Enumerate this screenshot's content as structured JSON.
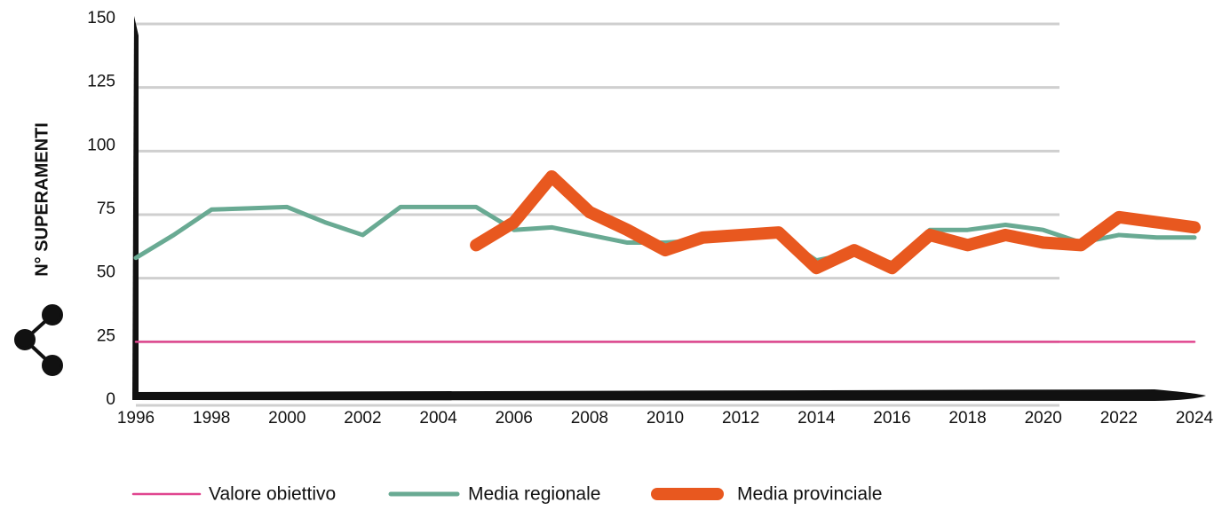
{
  "chart_data": {
    "type": "line",
    "y_label": "N° SUPERAMENTI",
    "x": [
      1996,
      1997,
      1998,
      1999,
      2000,
      2001,
      2002,
      2003,
      2004,
      2005,
      2006,
      2007,
      2008,
      2009,
      2010,
      2011,
      2012,
      2013,
      2014,
      2015,
      2016,
      2017,
      2018,
      2019,
      2020,
      2021,
      2022,
      2023,
      2024
    ],
    "series": [
      {
        "name": "Valore obiettivo",
        "color": "#e0468f",
        "values": [
          25,
          25,
          25,
          25,
          25,
          25,
          25,
          25,
          25,
          25,
          25,
          25,
          25,
          25,
          25,
          25,
          25,
          25,
          25,
          25,
          25,
          25,
          25,
          25,
          25,
          25,
          25,
          25,
          25
        ]
      },
      {
        "name": "Media regionale",
        "color": "#69aa93",
        "values": [
          58,
          67,
          77,
          77.5,
          78,
          72,
          67,
          78,
          78,
          78,
          69,
          70,
          67,
          64,
          64,
          65,
          66,
          67,
          57,
          60,
          56,
          69,
          69,
          71,
          69,
          64,
          67,
          66,
          66
        ]
      },
      {
        "name": "Media provinciale",
        "color": "#e8581f",
        "values": [
          null,
          null,
          null,
          null,
          null,
          null,
          null,
          null,
          null,
          63,
          72,
          90,
          76,
          69,
          61,
          66,
          67,
          68,
          54,
          61,
          54,
          67,
          63,
          67,
          64,
          63,
          74,
          72,
          70
        ]
      }
    ],
    "xlim": [
      1996,
      2024
    ],
    "xticks": [
      1996,
      1998,
      2000,
      2002,
      2004,
      2006,
      2008,
      2010,
      2012,
      2014,
      2016,
      2018,
      2020,
      2022,
      2024
    ],
    "ylim": [
      0,
      150
    ],
    "yticks": [
      0,
      25,
      50,
      75,
      100,
      125,
      150
    ],
    "grid": true
  }
}
